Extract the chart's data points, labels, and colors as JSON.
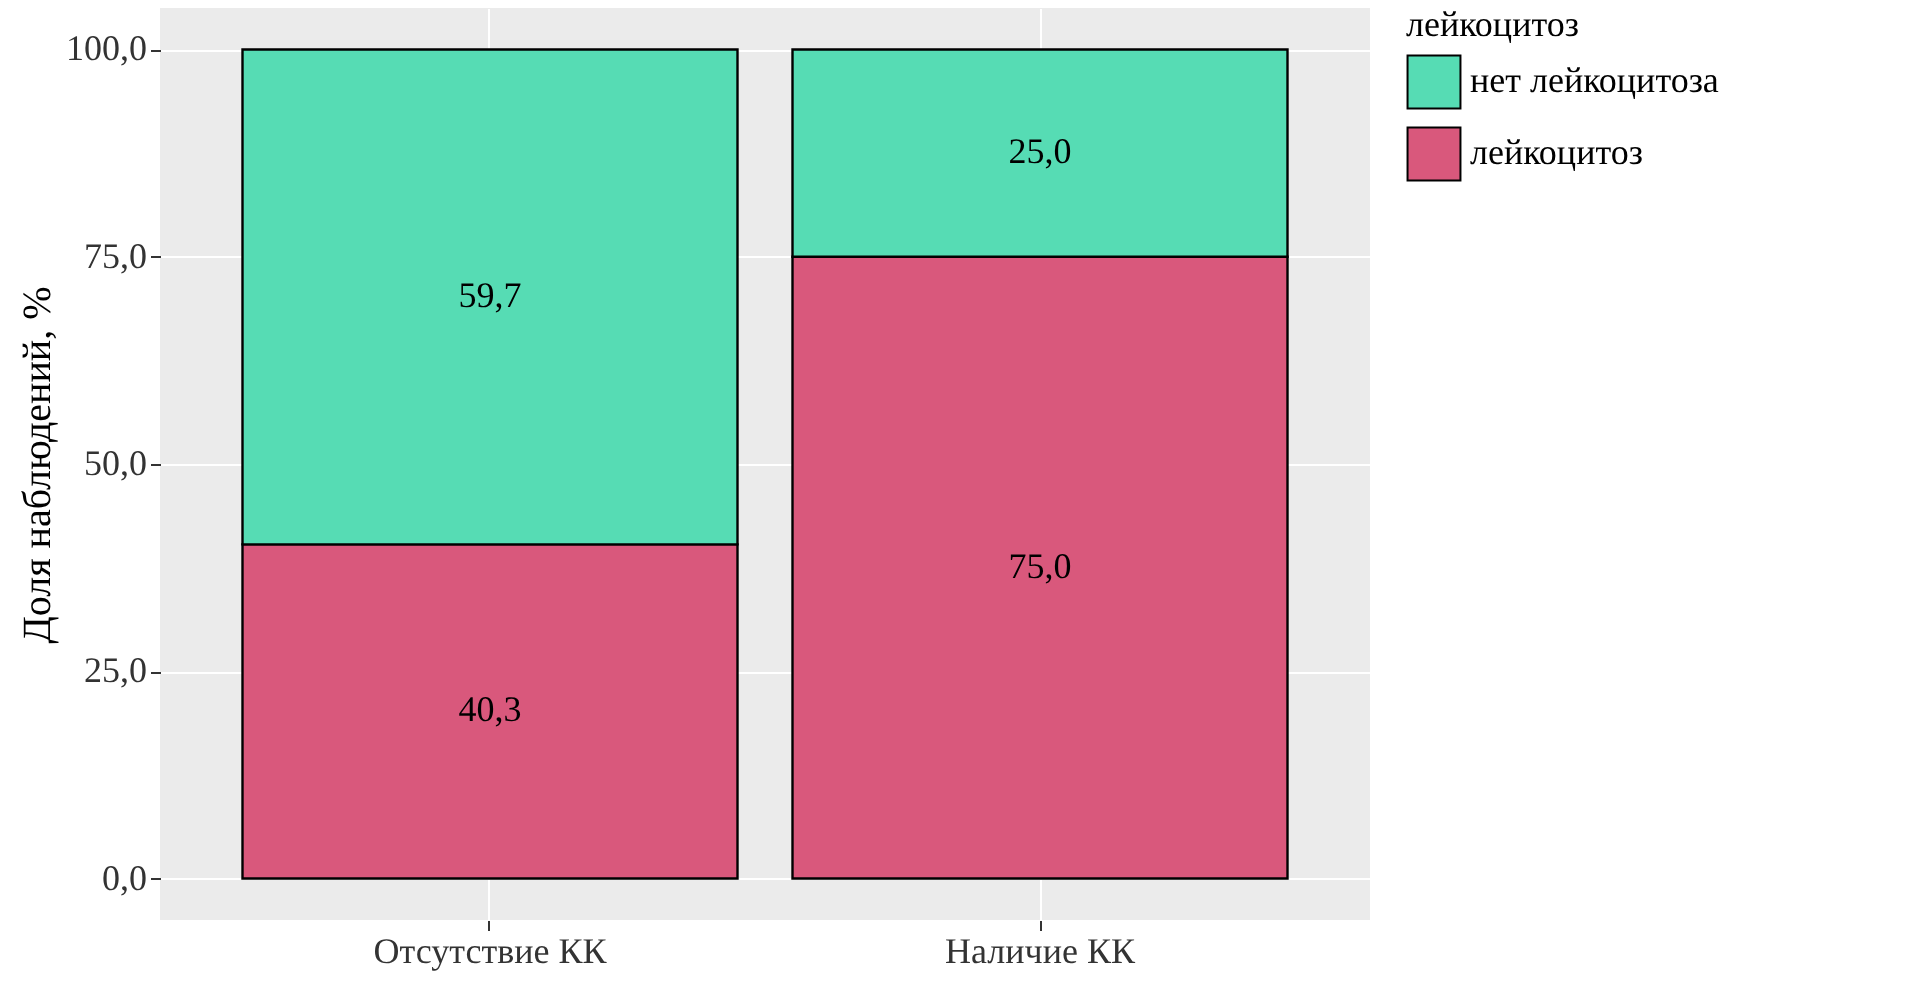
{
  "chart_data": {
    "type": "bar",
    "stacked": true,
    "ylabel": "Доля наблюдений, %",
    "legend_title": "лейкоцитоз",
    "legend": "right",
    "grid": true,
    "categories": [
      "Отсутствие КК",
      "Наличие КК"
    ],
    "series": [
      {
        "name": "лейкоцитоз",
        "color": "#d9587c",
        "values": [
          40.3,
          75.0
        ],
        "value_labels": [
          "40,3",
          "75,0"
        ]
      },
      {
        "name": "нет лейкоцитоза",
        "color": "#56dcb4",
        "values": [
          59.7,
          25.0
        ],
        "value_labels": [
          "59,7",
          "25,0"
        ]
      }
    ],
    "ylim": [
      -5,
      105
    ],
    "yticks": [
      {
        "value": 0,
        "label": "0,0"
      },
      {
        "value": 25,
        "label": "25,0"
      },
      {
        "value": 50,
        "label": "50,0"
      },
      {
        "value": 75,
        "label": "75,0"
      },
      {
        "value": 100,
        "label": "100,0"
      }
    ]
  }
}
